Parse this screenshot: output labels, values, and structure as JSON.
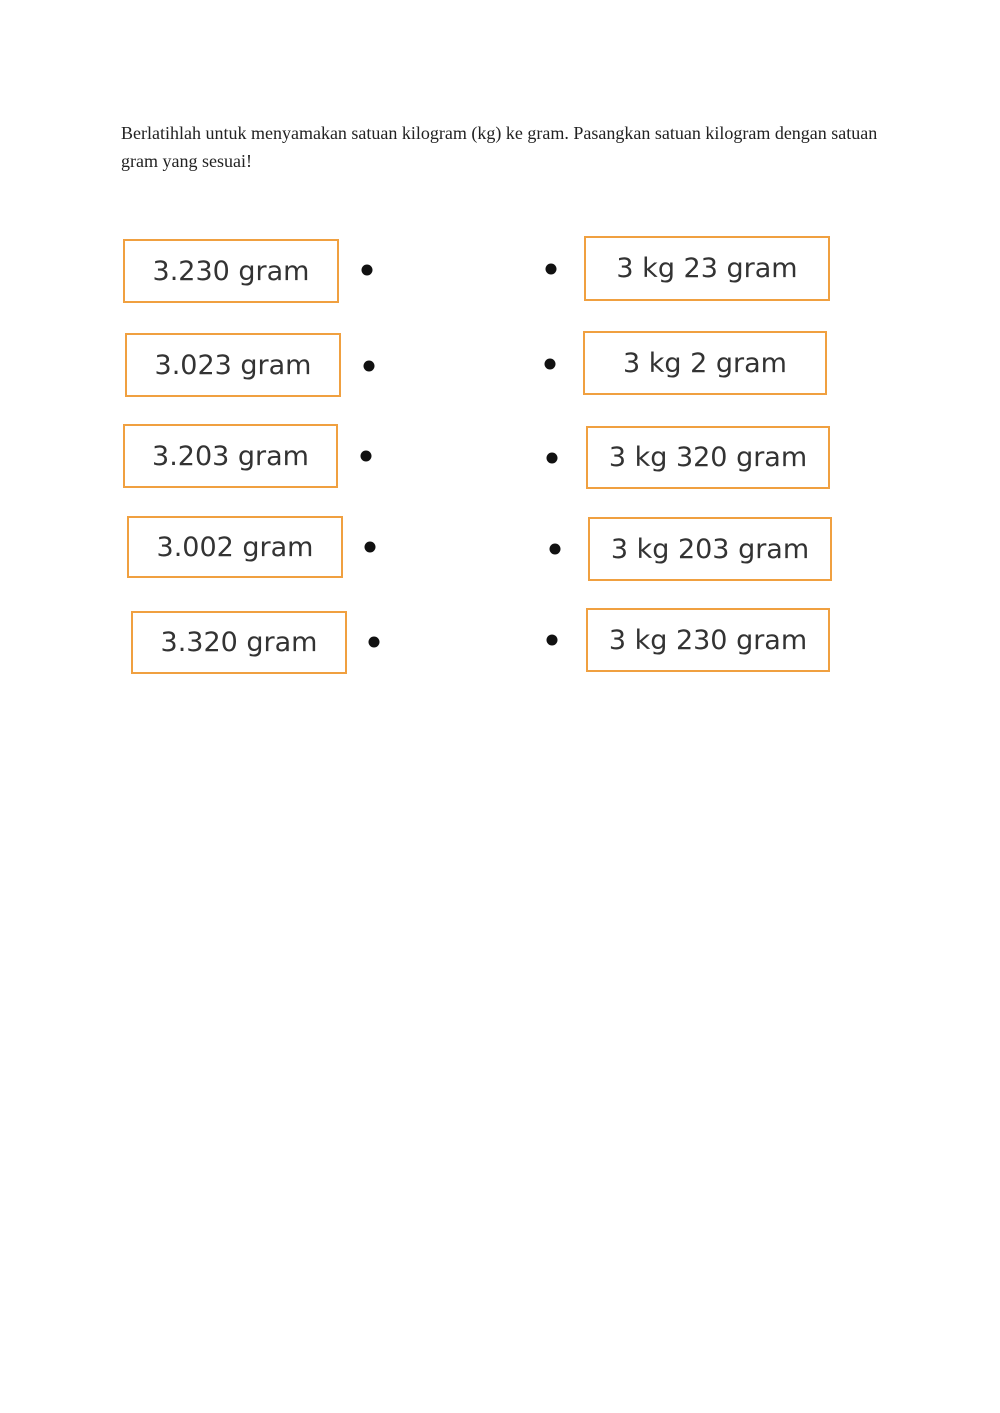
{
  "instruction": "Berlatihlah untuk menyamakan satuan kilogram (kg) ke gram. Pasangkan satuan kilogram dengan satuan gram yang sesuai!",
  "left_items": [
    "3.230 gram",
    "3.023 gram",
    "3.203 gram",
    "3.002 gram",
    "3.320 gram"
  ],
  "right_items": [
    "3 kg 23 gram",
    "3 kg 2 gram",
    "3 kg 320 gram",
    "3 kg 203 gram",
    "3 kg 230 gram"
  ],
  "colors": {
    "box_border": "#f0a040",
    "dot": "#111111"
  }
}
